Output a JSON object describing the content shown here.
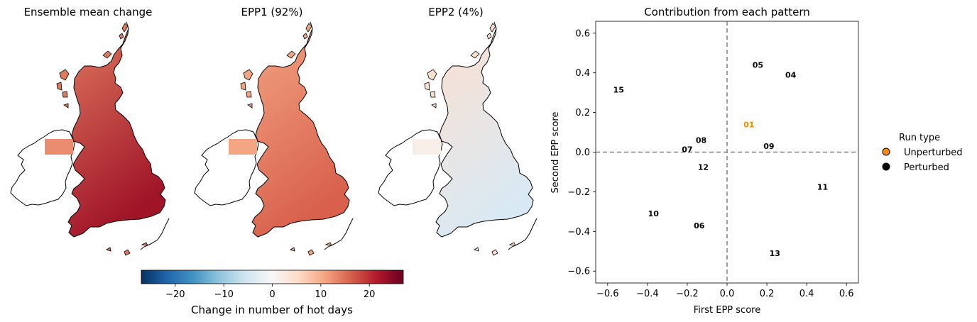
{
  "maps": {
    "panel_titles": [
      "Ensemble mean change",
      "EPP1 (92%)",
      "EPP2 (4%)"
    ],
    "colorbar": {
      "label": "Change in number of hot days",
      "ticks": [
        -20,
        -10,
        0,
        10,
        20
      ],
      "range": [
        -27,
        27
      ],
      "colormap": "RdBu_r",
      "colors": [
        "#053061",
        "#2166ac",
        "#4393c3",
        "#92c5de",
        "#d1e5f0",
        "#f7f7f7",
        "#fddbc7",
        "#f4a582",
        "#d6604d",
        "#b2182b",
        "#67001f"
      ]
    },
    "panel_fill": {
      "ensemble": {
        "north": "#e07a5f",
        "south": "#a01428",
        "ireland": "#ea8c70"
      },
      "epp1": {
        "north": "#f3a583",
        "south": "#d8604c",
        "ireland": "#f4a582"
      },
      "epp2": {
        "north": "#fde0d0",
        "south": "#d9e9f3",
        "ireland": "#f8eee8"
      }
    }
  },
  "chart_data": {
    "type": "scatter",
    "title": "Contribution from each pattern",
    "xlabel": "First EPP score",
    "ylabel": "Second EPP score",
    "xlim": [
      -0.66,
      0.66
    ],
    "ylim": [
      -0.66,
      0.66
    ],
    "xticks": [
      -0.6,
      -0.4,
      -0.2,
      0.0,
      0.2,
      0.4,
      0.6
    ],
    "yticks": [
      -0.6,
      -0.4,
      -0.2,
      0.0,
      0.2,
      0.4,
      0.6
    ],
    "reference_lines": {
      "x": 0.0,
      "y": 0.0,
      "style": "dashed",
      "color": "#808080"
    },
    "grid": false,
    "legend": {
      "title": "Run type",
      "placement": "right",
      "entries": [
        {
          "label": "Unperturbed",
          "color": "#ff8c00"
        },
        {
          "label": "Perturbed",
          "color": "#000000"
        }
      ]
    },
    "series": [
      {
        "name": "Unperturbed",
        "color": "#ff8c00",
        "points": [
          {
            "label": "01",
            "x": 0.11,
            "y": 0.14
          }
        ]
      },
      {
        "name": "Perturbed",
        "color": "#000000",
        "points": [
          {
            "label": "04",
            "x": 0.32,
            "y": 0.39
          },
          {
            "label": "05",
            "x": 0.155,
            "y": 0.44
          },
          {
            "label": "06",
            "x": -0.14,
            "y": -0.37
          },
          {
            "label": "07",
            "x": -0.2,
            "y": 0.015
          },
          {
            "label": "08",
            "x": -0.13,
            "y": 0.06
          },
          {
            "label": "09",
            "x": 0.21,
            "y": 0.03
          },
          {
            "label": "10",
            "x": -0.37,
            "y": -0.31
          },
          {
            "label": "11",
            "x": 0.48,
            "y": -0.175
          },
          {
            "label": "12",
            "x": -0.12,
            "y": -0.075
          },
          {
            "label": "13",
            "x": 0.24,
            "y": -0.51
          },
          {
            "label": "15",
            "x": -0.545,
            "y": 0.315
          }
        ]
      }
    ]
  }
}
